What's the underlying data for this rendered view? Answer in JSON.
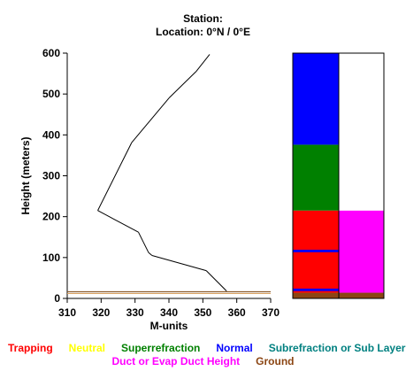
{
  "header": {
    "station_line": "Station:",
    "location_line": "Location:   0°N /   0°E"
  },
  "chart_data": {
    "type": "line",
    "xlabel": "M-units",
    "ylabel": "Height (meters)",
    "xlim": [
      310,
      370
    ],
    "ylim": [
      0,
      600
    ],
    "x_ticks": [
      "310",
      "320",
      "330",
      "340",
      "350",
      "360",
      "370"
    ],
    "y_ticks": [
      "0",
      "100",
      "200",
      "300",
      "400",
      "500",
      "600"
    ],
    "series": [
      {
        "color": "#000000",
        "points": [
          [
            357,
            18
          ],
          [
            351,
            68
          ],
          [
            335,
            105
          ],
          [
            334,
            112
          ],
          [
            331,
            162
          ],
          [
            319,
            215
          ],
          [
            329,
            381
          ],
          [
            340,
            490
          ],
          [
            348,
            555
          ],
          [
            352,
            597
          ]
        ]
      }
    ],
    "ground_line": {
      "y": 14,
      "color": "#8b5a2b"
    },
    "layer_columns": [
      [
        {
          "from": 0,
          "to": 14,
          "color": "#8b4513"
        },
        {
          "from": 14,
          "to": 215,
          "color": "#ff0000"
        },
        {
          "from": 215,
          "to": 376,
          "color": "#008000"
        },
        {
          "from": 376,
          "to": 600,
          "color": "#0000ff"
        }
      ],
      [
        {
          "from": 0,
          "to": 14,
          "color": "#8b4513"
        },
        {
          "from": 14,
          "to": 215,
          "color": "#ff00ff"
        },
        {
          "from": 215,
          "to": 600,
          "color": "#ffffff"
        }
      ]
    ],
    "normal_bands_in_column1": [
      {
        "from": 18,
        "to": 24,
        "color": "#0000ff"
      },
      {
        "from": 113,
        "to": 119,
        "color": "#0000ff"
      }
    ],
    "legend": [
      {
        "label": "Trapping",
        "color": "#ff0000"
      },
      {
        "label": "Neutral",
        "color": "#ffff00"
      },
      {
        "label": "Superrefraction",
        "color": "#008000"
      },
      {
        "label": "Normal",
        "color": "#0000ff"
      },
      {
        "label": "Subrefraction or Sub Layer",
        "color": "#008080"
      },
      {
        "label": "Duct or Evap Duct Height",
        "color": "#ff00ff"
      },
      {
        "label": "Ground",
        "color": "#8b4513"
      }
    ]
  }
}
